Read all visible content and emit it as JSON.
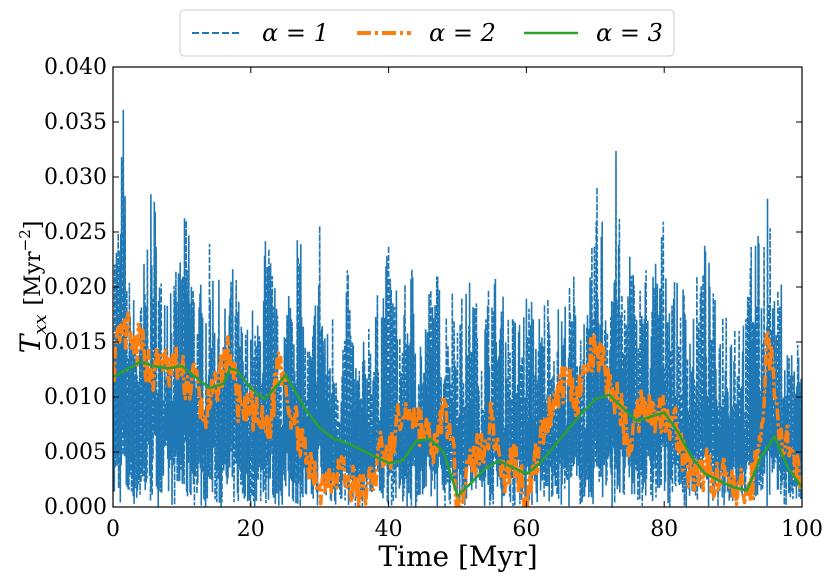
{
  "chart_data": {
    "type": "line",
    "xlabel": "Time [Myr]",
    "ylabel_main": "T",
    "ylabel_sub": "xx",
    "ylabel_unit": "[Myr",
    "ylabel_exp": "−2",
    "ylabel_close": "]",
    "xlim": [
      0,
      100
    ],
    "ylim": [
      0,
      0.04
    ],
    "xticks": [
      0,
      20,
      40,
      60,
      80,
      100
    ],
    "xtick_labels": [
      "0",
      "20",
      "40",
      "60",
      "80",
      "100"
    ],
    "yticks": [
      0,
      0.005,
      0.01,
      0.015,
      0.02,
      0.025,
      0.03,
      0.035,
      0.04
    ],
    "ytick_labels": [
      "0.000",
      "0.005",
      "0.010",
      "0.015",
      "0.020",
      "0.025",
      "0.030",
      "0.035",
      "0.040"
    ],
    "legend_position": "top-center, outside plot",
    "grid": false,
    "series": [
      {
        "name": "α = 1",
        "color": "#1f77b4",
        "style": "dashed",
        "envelope_x": [
          0,
          1,
          1.5,
          2,
          3,
          4,
          5,
          6,
          7,
          8,
          9,
          10,
          11,
          12,
          13,
          14,
          15,
          16,
          17,
          18,
          19,
          20,
          21,
          22,
          23,
          24,
          25,
          26,
          27,
          28,
          29,
          30,
          31,
          32,
          33,
          34,
          35,
          36,
          37,
          38,
          39,
          40,
          41,
          42,
          43,
          44,
          45,
          46,
          47,
          48,
          49,
          50,
          51,
          52,
          53,
          54,
          55,
          56,
          57,
          58,
          59,
          60,
          61,
          62,
          63,
          64,
          65,
          66,
          67,
          68,
          69,
          70,
          71,
          72,
          73,
          74,
          75,
          76,
          77,
          78,
          79,
          80,
          81,
          82,
          83,
          84,
          85,
          86,
          87,
          88,
          89,
          90,
          91,
          92,
          93,
          94,
          95,
          96,
          97,
          98,
          99,
          100
        ],
        "envelope_y": [
          0.026,
          0.029,
          0.038,
          0.022,
          0.02,
          0.019,
          0.027,
          0.03,
          0.022,
          0.026,
          0.021,
          0.025,
          0.029,
          0.02,
          0.021,
          0.024,
          0.023,
          0.017,
          0.023,
          0.021,
          0.016,
          0.019,
          0.017,
          0.026,
          0.024,
          0.017,
          0.019,
          0.025,
          0.027,
          0.015,
          0.017,
          0.028,
          0.016,
          0.019,
          0.014,
          0.022,
          0.016,
          0.013,
          0.019,
          0.018,
          0.022,
          0.024,
          0.021,
          0.018,
          0.024,
          0.021,
          0.016,
          0.021,
          0.022,
          0.019,
          0.021,
          0.021,
          0.019,
          0.022,
          0.018,
          0.019,
          0.023,
          0.02,
          0.019,
          0.018,
          0.018,
          0.02,
          0.019,
          0.018,
          0.021,
          0.018,
          0.019,
          0.02,
          0.022,
          0.019,
          0.018,
          0.03,
          0.028,
          0.022,
          0.033,
          0.02,
          0.026,
          0.019,
          0.024,
          0.021,
          0.025,
          0.027,
          0.023,
          0.02,
          0.021,
          0.019,
          0.022,
          0.025,
          0.02,
          0.018,
          0.021,
          0.019,
          0.02,
          0.018,
          0.031,
          0.022,
          0.032,
          0.019,
          0.021,
          0.015,
          0.017,
          0.014
        ],
        "seed": 7
      },
      {
        "name": "α = 2",
        "color": "#ff7f0e",
        "style": "dashdot",
        "x": [
          0,
          1,
          2,
          3,
          4,
          5,
          6,
          7,
          8,
          9,
          10,
          11,
          12,
          13,
          14,
          15,
          16,
          17,
          18,
          19,
          20,
          21,
          22,
          23,
          24,
          25,
          26,
          27,
          28,
          29,
          30,
          31,
          32,
          33,
          34,
          35,
          36,
          37,
          38,
          39,
          40,
          41,
          42,
          43,
          44,
          45,
          46,
          47,
          48,
          49,
          50,
          51,
          52,
          53,
          54,
          55,
          56,
          57,
          58,
          59,
          60,
          61,
          62,
          63,
          64,
          65,
          66,
          67,
          68,
          69,
          70,
          71,
          72,
          73,
          74,
          75,
          76,
          77,
          78,
          79,
          80,
          81,
          82,
          83,
          84,
          85,
          86,
          87,
          88,
          89,
          90,
          91,
          92,
          93,
          94,
          95,
          96,
          97,
          98,
          99,
          100
        ],
        "y": [
          0.013,
          0.015,
          0.016,
          0.014,
          0.015,
          0.013,
          0.012,
          0.014,
          0.012,
          0.013,
          0.012,
          0.011,
          0.012,
          0.008,
          0.009,
          0.011,
          0.013,
          0.014,
          0.01,
          0.008,
          0.009,
          0.008,
          0.007,
          0.008,
          0.014,
          0.012,
          0.008,
          0.007,
          0.004,
          0.003,
          0.002,
          0.003,
          0.003,
          0.004,
          0.002,
          0.002,
          0.001,
          0.002,
          0.003,
          0.006,
          0.004,
          0.007,
          0.008,
          0.009,
          0.008,
          0.007,
          0.006,
          0.005,
          0.01,
          0.006,
          0.001,
          0.002,
          0.004,
          0.005,
          0.006,
          0.008,
          0.005,
          0.002,
          0.005,
          0.003,
          0.001,
          0.003,
          0.006,
          0.008,
          0.01,
          0.011,
          0.012,
          0.01,
          0.011,
          0.013,
          0.014,
          0.013,
          0.011,
          0.01,
          0.008,
          0.006,
          0.008,
          0.01,
          0.009,
          0.008,
          0.009,
          0.008,
          0.007,
          0.004,
          0.003,
          0.002,
          0.004,
          0.003,
          0.002,
          0.003,
          0.001,
          0.002,
          0.001,
          0.003,
          0.006,
          0.016,
          0.01,
          0.007,
          0.005,
          0.003,
          0.002
        ]
      },
      {
        "name": "α = 3",
        "color": "#2ca02c",
        "style": "solid",
        "x": [
          0,
          2,
          4,
          6,
          8,
          10,
          12,
          14,
          16,
          17,
          18,
          20,
          22,
          24,
          25,
          26,
          28,
          30,
          32,
          34,
          36,
          38,
          40,
          42,
          44,
          46,
          48,
          50,
          52,
          54,
          56,
          58,
          60,
          62,
          64,
          66,
          68,
          70,
          72,
          74,
          76,
          78,
          80,
          82,
          84,
          86,
          88,
          90,
          92,
          94,
          96,
          98,
          100
        ],
        "y": [
          0.0118,
          0.0125,
          0.0132,
          0.0128,
          0.0126,
          0.0128,
          0.0118,
          0.0108,
          0.0112,
          0.0126,
          0.0124,
          0.0108,
          0.0098,
          0.0112,
          0.012,
          0.011,
          0.0088,
          0.0072,
          0.0062,
          0.0058,
          0.0052,
          0.0046,
          0.004,
          0.0042,
          0.006,
          0.0062,
          0.005,
          0.001,
          0.0022,
          0.0035,
          0.0042,
          0.0036,
          0.003,
          0.004,
          0.0055,
          0.007,
          0.0085,
          0.0098,
          0.0102,
          0.009,
          0.0078,
          0.0082,
          0.0086,
          0.0068,
          0.0045,
          0.003,
          0.0024,
          0.0018,
          0.0015,
          0.0045,
          0.0064,
          0.0035,
          0.0018
        ]
      }
    ]
  }
}
